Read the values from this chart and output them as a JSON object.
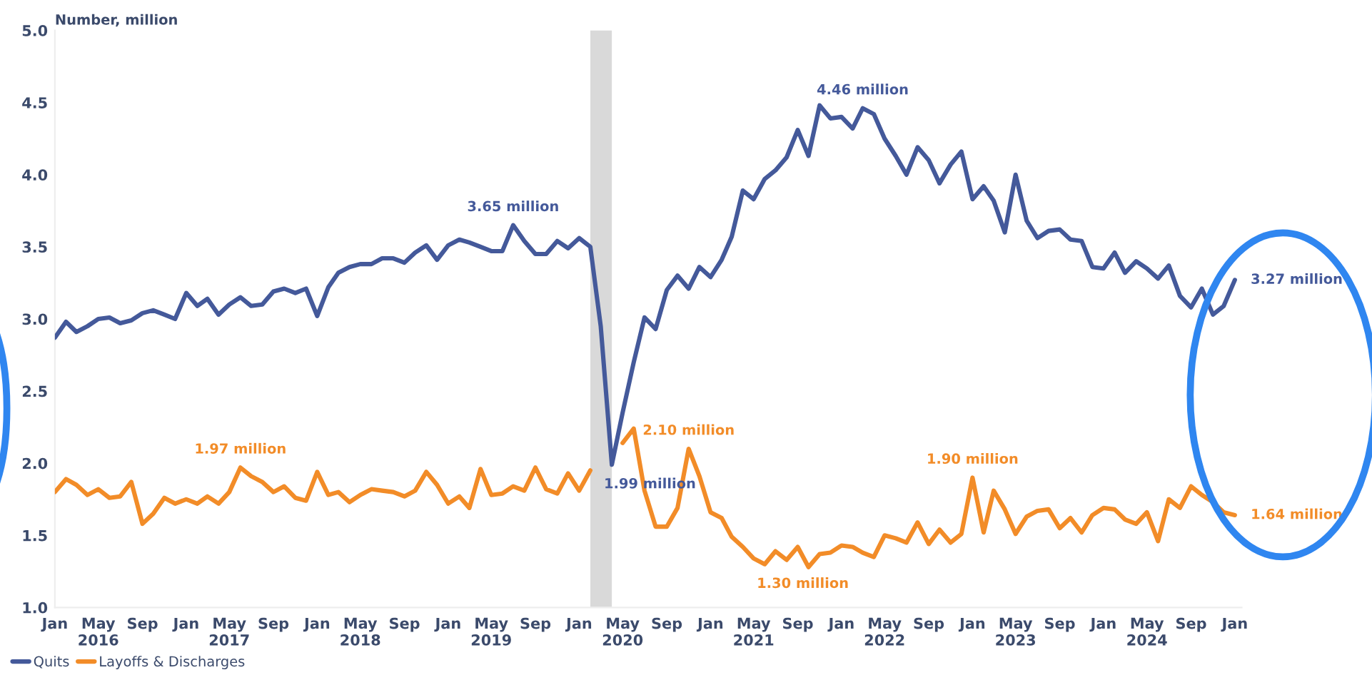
{
  "chart_data": {
    "type": "line",
    "ylabel": "Number, million",
    "x": [
      "2016-01",
      "2016-02",
      "2016-03",
      "2016-04",
      "2016-05",
      "2016-06",
      "2016-07",
      "2016-08",
      "2016-09",
      "2016-10",
      "2016-11",
      "2016-12",
      "2017-01",
      "2017-02",
      "2017-03",
      "2017-04",
      "2017-05",
      "2017-06",
      "2017-07",
      "2017-08",
      "2017-09",
      "2017-10",
      "2017-11",
      "2017-12",
      "2018-01",
      "2018-02",
      "2018-03",
      "2018-04",
      "2018-05",
      "2018-06",
      "2018-07",
      "2018-08",
      "2018-09",
      "2018-10",
      "2018-11",
      "2018-12",
      "2019-01",
      "2019-02",
      "2019-03",
      "2019-04",
      "2019-05",
      "2019-06",
      "2019-07",
      "2019-08",
      "2019-09",
      "2019-10",
      "2019-11",
      "2019-12",
      "2020-01",
      "2020-02",
      "2020-03",
      "2020-04",
      "2020-05",
      "2020-06",
      "2020-07",
      "2020-08",
      "2020-09",
      "2020-10",
      "2020-11",
      "2020-12",
      "2021-01",
      "2021-02",
      "2021-03",
      "2021-04",
      "2021-05",
      "2021-06",
      "2021-07",
      "2021-08",
      "2021-09",
      "2021-10",
      "2021-11",
      "2021-12",
      "2022-01",
      "2022-02",
      "2022-03",
      "2022-04",
      "2022-05",
      "2022-06",
      "2022-07",
      "2022-08",
      "2022-09",
      "2022-10",
      "2022-11",
      "2022-12",
      "2023-01",
      "2023-02",
      "2023-03",
      "2023-04",
      "2023-05",
      "2023-06",
      "2023-07",
      "2023-08",
      "2023-09",
      "2023-10",
      "2023-11",
      "2023-12",
      "2024-01",
      "2024-02",
      "2024-03",
      "2024-04",
      "2024-05",
      "2024-06",
      "2024-07",
      "2024-08",
      "2024-09",
      "2024-10",
      "2024-11",
      "2024-12",
      "2025-01"
    ],
    "series": [
      {
        "name": "Quits",
        "color": "#44599a",
        "values": [
          2.87,
          2.98,
          2.91,
          2.95,
          3.0,
          3.01,
          2.97,
          2.99,
          3.04,
          3.06,
          3.03,
          3.0,
          3.18,
          3.09,
          3.14,
          3.03,
          3.1,
          3.15,
          3.09,
          3.1,
          3.19,
          3.21,
          3.18,
          3.21,
          3.02,
          3.22,
          3.32,
          3.36,
          3.38,
          3.38,
          3.42,
          3.42,
          3.39,
          3.46,
          3.51,
          3.41,
          3.51,
          3.55,
          3.53,
          3.5,
          3.47,
          3.47,
          3.65,
          3.54,
          3.45,
          3.45,
          3.54,
          3.49,
          3.56,
          3.5,
          2.95,
          1.99,
          2.35,
          2.7,
          3.01,
          2.93,
          3.2,
          3.3,
          3.21,
          3.36,
          3.29,
          3.41,
          3.57,
          3.89,
          3.83,
          3.97,
          4.03,
          4.12,
          4.31,
          4.13,
          4.48,
          4.39,
          4.4,
          4.32,
          4.46,
          4.42,
          4.25,
          4.13,
          4.0,
          4.19,
          4.1,
          3.94,
          4.07,
          4.16,
          3.83,
          3.92,
          3.82,
          3.6,
          4.0,
          3.68,
          3.56,
          3.61,
          3.62,
          3.55,
          3.54,
          3.36,
          3.35,
          3.46,
          3.32,
          3.4,
          3.35,
          3.28,
          3.37,
          3.16,
          3.08,
          3.21,
          3.03,
          3.09,
          3.27
        ]
      },
      {
        "name": "Layoffs & Discharges",
        "color": "#f28c28",
        "values": [
          1.8,
          1.89,
          1.85,
          1.78,
          1.82,
          1.76,
          1.77,
          1.87,
          1.58,
          1.65,
          1.76,
          1.72,
          1.75,
          1.72,
          1.77,
          1.72,
          1.8,
          1.97,
          1.91,
          1.87,
          1.8,
          1.84,
          1.76,
          1.74,
          1.94,
          1.78,
          1.8,
          1.73,
          1.78,
          1.82,
          1.81,
          1.8,
          1.77,
          1.81,
          1.94,
          1.85,
          1.72,
          1.77,
          1.69,
          1.96,
          1.78,
          1.79,
          1.84,
          1.81,
          1.97,
          1.82,
          1.79,
          1.93,
          1.81,
          1.95,
          null,
          null,
          2.14,
          2.24,
          1.81,
          1.56,
          1.56,
          1.69,
          2.1,
          1.91,
          1.66,
          1.62,
          1.49,
          1.42,
          1.34,
          1.3,
          1.39,
          1.33,
          1.42,
          1.28,
          1.37,
          1.38,
          1.43,
          1.42,
          1.38,
          1.35,
          1.5,
          1.48,
          1.45,
          1.59,
          1.44,
          1.54,
          1.45,
          1.51,
          1.9,
          1.52,
          1.81,
          1.68,
          1.51,
          1.63,
          1.67,
          1.68,
          1.55,
          1.62,
          1.52,
          1.64,
          1.69,
          1.68,
          1.61,
          1.58,
          1.66,
          1.46,
          1.75,
          1.69,
          1.84,
          1.78,
          1.73,
          1.66,
          1.64
        ]
      }
    ],
    "xlim": [
      "2016-01",
      "2025-01-20"
    ],
    "xticks": [
      {
        "value": "2016-01",
        "label": "Jan"
      },
      {
        "value": "2016-05",
        "label": "May\n2016"
      },
      {
        "value": "2016-09",
        "label": "Sep"
      },
      {
        "value": "2017-01",
        "label": "Jan"
      },
      {
        "value": "2017-05",
        "label": "May\n2017"
      },
      {
        "value": "2017-09",
        "label": "Sep"
      },
      {
        "value": "2018-01",
        "label": "Jan"
      },
      {
        "value": "2018-05",
        "label": "May\n2018"
      },
      {
        "value": "2018-09",
        "label": "Sep"
      },
      {
        "value": "2019-01",
        "label": "Jan"
      },
      {
        "value": "2019-05",
        "label": "May\n2019"
      },
      {
        "value": "2019-09",
        "label": "Sep"
      },
      {
        "value": "2020-01",
        "label": "Jan"
      },
      {
        "value": "2020-05",
        "label": "May\n2020"
      },
      {
        "value": "2020-09",
        "label": "Sep"
      },
      {
        "value": "2021-01",
        "label": "Jan"
      },
      {
        "value": "2021-05",
        "label": "May\n2021"
      },
      {
        "value": "2021-09",
        "label": "Sep"
      },
      {
        "value": "2022-01",
        "label": "Jan"
      },
      {
        "value": "2022-05",
        "label": "May\n2022"
      },
      {
        "value": "2022-09",
        "label": "Sep"
      },
      {
        "value": "2023-01",
        "label": "Jan"
      },
      {
        "value": "2023-05",
        "label": "May\n2023"
      },
      {
        "value": "2023-09",
        "label": "Sep"
      },
      {
        "value": "2024-01",
        "label": "Jan"
      },
      {
        "value": "2024-05",
        "label": "May\n2024"
      },
      {
        "value": "2024-09",
        "label": "Sep"
      },
      {
        "value": "2025-01",
        "label": "Jan"
      }
    ],
    "ylim": [
      1.0,
      5.0
    ],
    "yticks": [
      {
        "value": 1.0,
        "label": "1.0"
      },
      {
        "value": 1.5,
        "label": "1.5"
      },
      {
        "value": 2.0,
        "label": "2.0"
      },
      {
        "value": 2.5,
        "label": "2.5"
      },
      {
        "value": 3.0,
        "label": "3.0"
      },
      {
        "value": 3.5,
        "label": "3.5"
      },
      {
        "value": 4.0,
        "label": "4.0"
      },
      {
        "value": 4.5,
        "label": "4.5"
      },
      {
        "value": 5.0,
        "label": "5.0"
      }
    ],
    "bands": [
      {
        "axis": "x",
        "from": "2020-02",
        "to": "2020-04",
        "color": "#d9d9d9"
      }
    ],
    "annotations": [
      {
        "text": "3.65 million",
        "x": "2019-07",
        "y": 3.65
      },
      {
        "text": "4.46 million",
        "x": "2022-03",
        "y": 4.46
      },
      {
        "text": "3.27 million",
        "x": "2025-01",
        "y": 3.27
      },
      {
        "text": "1.99 million",
        "x": "2020-04",
        "y": 1.99
      },
      {
        "text": "1.97 million",
        "x": "2017-06",
        "y": 1.97
      },
      {
        "text": "2.10 million",
        "x": "2020-11",
        "y": 2.1
      },
      {
        "text": "1.30 million",
        "x": "2021-06",
        "y": 1.3
      },
      {
        "text": "1.90 million",
        "x": "2023-01",
        "y": 1.9
      },
      {
        "text": "1.64 million",
        "x": "2025-01",
        "y": 1.64
      }
    ],
    "legend": "bottom left",
    "grid": false
  }
}
